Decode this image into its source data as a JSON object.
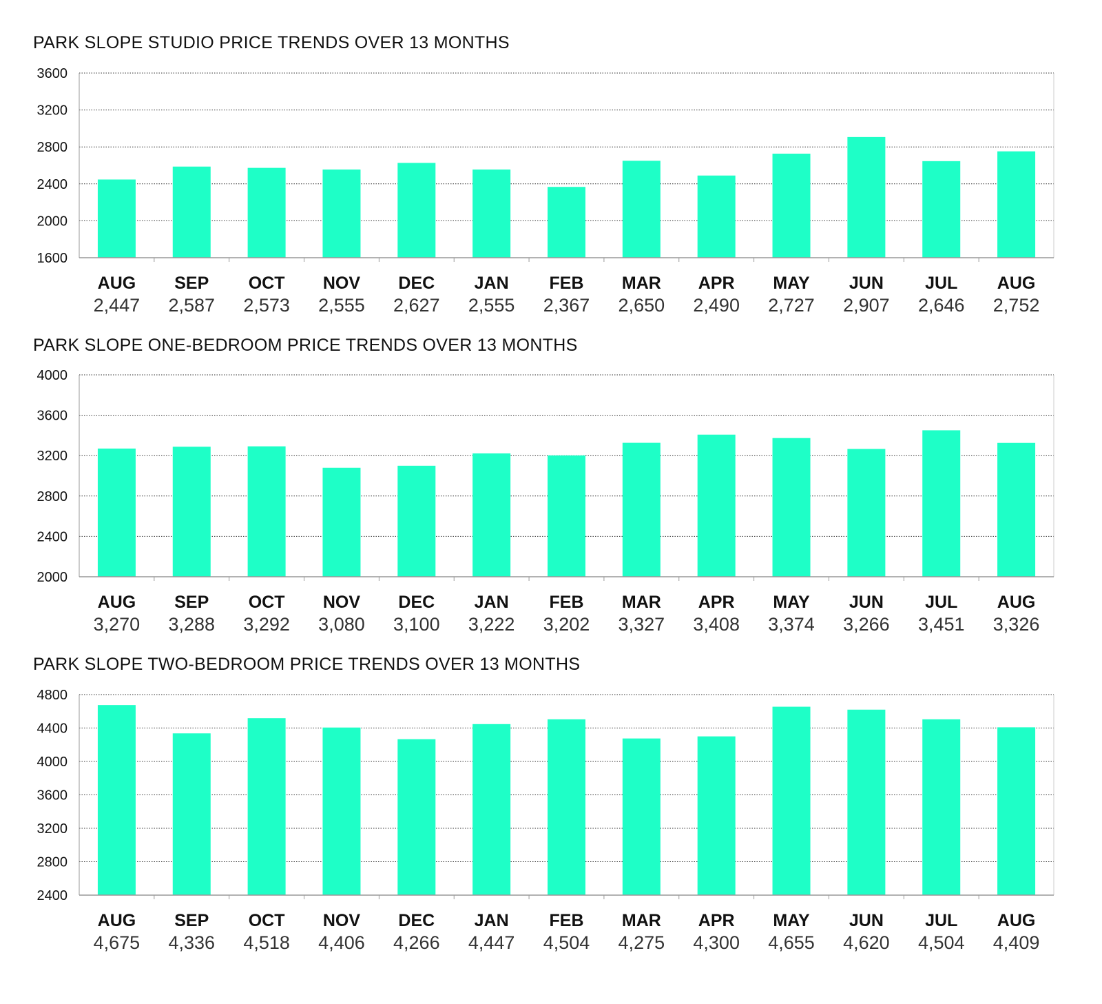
{
  "style": {
    "bar_color": "#1effc7",
    "grid_color": "#333333",
    "axis_color": "#999999"
  },
  "chart_data": [
    {
      "type": "bar",
      "title": "PARK SLOPE STUDIO PRICE TRENDS OVER 13 MONTHS",
      "categories": [
        "AUG",
        "SEP",
        "OCT",
        "NOV",
        "DEC",
        "JAN",
        "FEB",
        "MAR",
        "APR",
        "MAY",
        "JUN",
        "JUL",
        "AUG"
      ],
      "values": [
        2447,
        2587,
        2573,
        2555,
        2627,
        2555,
        2367,
        2650,
        2490,
        2727,
        2907,
        2646,
        2752
      ],
      "value_labels": [
        "2,447",
        "2,587",
        "2,573",
        "2,555",
        "2,627",
        "2,555",
        "2,367",
        "2,650",
        "2,490",
        "2,727",
        "2,907",
        "2,646",
        "2,752"
      ],
      "yticks": [
        1600,
        2000,
        2400,
        2800,
        3200,
        3600
      ],
      "ylim": [
        1600,
        3600
      ],
      "xlabel": "",
      "ylabel": "",
      "grid": true
    },
    {
      "type": "bar",
      "title": "PARK SLOPE ONE-BEDROOM PRICE TRENDS OVER 13 MONTHS",
      "categories": [
        "AUG",
        "SEP",
        "OCT",
        "NOV",
        "DEC",
        "JAN",
        "FEB",
        "MAR",
        "APR",
        "MAY",
        "JUN",
        "JUL",
        "AUG"
      ],
      "values": [
        3270,
        3288,
        3292,
        3080,
        3100,
        3222,
        3202,
        3327,
        3408,
        3374,
        3266,
        3451,
        3326
      ],
      "value_labels": [
        "3,270",
        "3,288",
        "3,292",
        "3,080",
        "3,100",
        "3,222",
        "3,202",
        "3,327",
        "3,408",
        "3,374",
        "3,266",
        "3,451",
        "3,326"
      ],
      "yticks": [
        2000,
        2400,
        2800,
        3200,
        3600,
        4000
      ],
      "ylim": [
        2000,
        4000
      ],
      "xlabel": "",
      "ylabel": "",
      "grid": true
    },
    {
      "type": "bar",
      "title": "PARK SLOPE TWO-BEDROOM PRICE TRENDS OVER 13 MONTHS",
      "categories": [
        "AUG",
        "SEP",
        "OCT",
        "NOV",
        "DEC",
        "JAN",
        "FEB",
        "MAR",
        "APR",
        "MAY",
        "JUN",
        "JUL",
        "AUG"
      ],
      "values": [
        4675,
        4336,
        4518,
        4406,
        4266,
        4447,
        4504,
        4275,
        4300,
        4655,
        4620,
        4504,
        4409
      ],
      "value_labels": [
        "4,675",
        "4,336",
        "4,518",
        "4,406",
        "4,266",
        "4,447",
        "4,504",
        "4,275",
        "4,300",
        "4,655",
        "4,620",
        "4,504",
        "4,409"
      ],
      "yticks": [
        2400,
        2800,
        3200,
        3600,
        4000,
        4400,
        4800
      ],
      "ylim": [
        2400,
        4800
      ],
      "xlabel": "",
      "ylabel": "",
      "grid": true
    }
  ]
}
